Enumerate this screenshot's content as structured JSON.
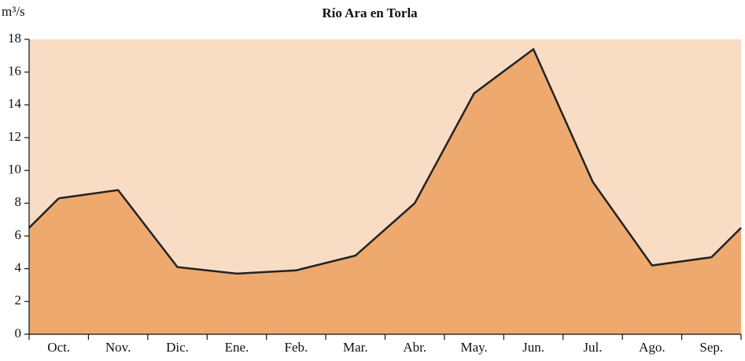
{
  "chart_data": {
    "type": "area",
    "title": "Río Ara en Torla",
    "y_label": "m³/s",
    "categories": [
      "Oct.",
      "Nov.",
      "Dic.",
      "Ene.",
      "Feb.",
      "Mar.",
      "Abr.",
      "May.",
      "Jun.",
      "Jul.",
      "Ago.",
      "Sep."
    ],
    "values": [
      8.3,
      8.8,
      4.1,
      3.7,
      3.9,
      4.8,
      8.0,
      14.7,
      17.4,
      9.3,
      4.2,
      4.7
    ],
    "color": "#eda96e",
    "line_color": "#222222",
    "background": "#f8dcc4",
    "ylim": [
      0,
      18
    ],
    "yticks": [
      0,
      2,
      4,
      6,
      8,
      10,
      12,
      14,
      16,
      18
    ]
  }
}
